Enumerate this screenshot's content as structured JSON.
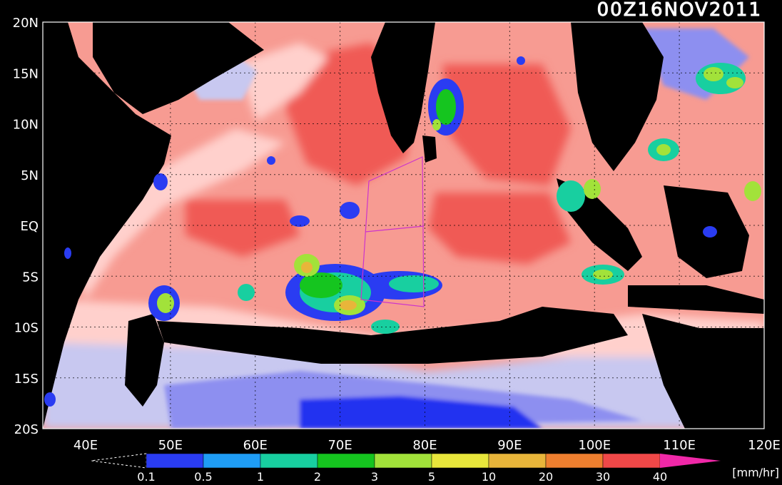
{
  "header": {
    "timestamp": "00Z16NOV2011"
  },
  "axes": {
    "lat_labels": [
      "20N",
      "15N",
      "10N",
      "5N",
      "EQ",
      "5S",
      "10S",
      "15S",
      "20S"
    ],
    "lon_labels": [
      "40E",
      "50E",
      "60E",
      "70E",
      "80E",
      "90E",
      "100E",
      "110E",
      "120E"
    ]
  },
  "colorbar": {
    "ticks": [
      "0.1",
      "0.5",
      "1",
      "2",
      "3",
      "5",
      "10",
      "20",
      "30",
      "40"
    ],
    "unit": "[mm/hr]",
    "colors": [
      "#2a3cf2",
      "#1f9df5",
      "#18cfa0",
      "#15c51f",
      "#a2e23a",
      "#e8e63b",
      "#e8b53a",
      "#ee7f2f",
      "#f04848",
      "#f028a8"
    ]
  },
  "map_colors": {
    "land": "#000000",
    "ocean_light": "#ffd0cc",
    "ocean_mid": "#f79b92",
    "ocean_strong": "#f05a55",
    "cool_light": "#c8c8f0",
    "cool_mid": "#8d8ff0",
    "cool_strong": "#2030f0",
    "frame": "#ffffff",
    "boundary": "#cc33cc"
  }
}
